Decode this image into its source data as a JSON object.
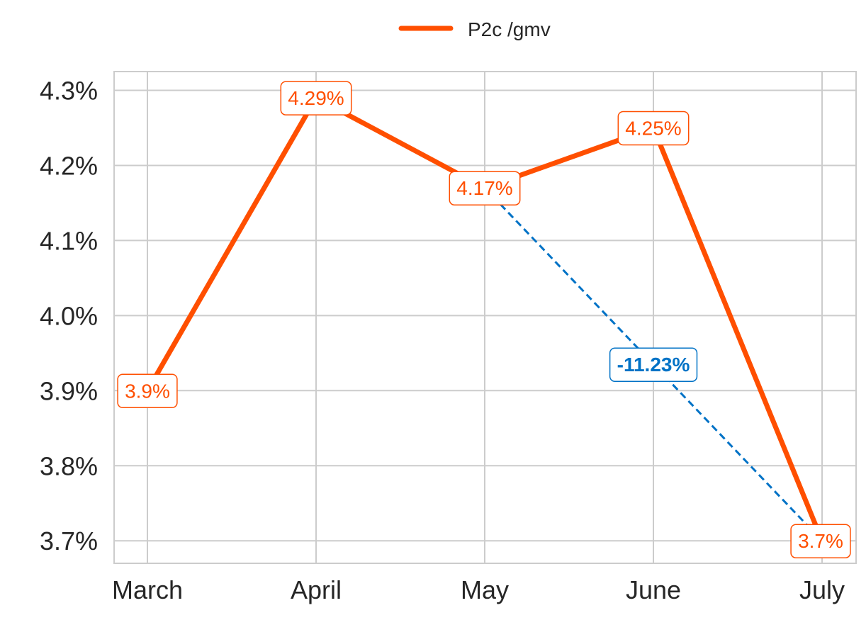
{
  "chart_data": {
    "type": "line",
    "categories": [
      "March",
      "April",
      "May",
      "June",
      "July"
    ],
    "series": [
      {
        "name": "P2c /gmv",
        "values": [
          3.9,
          4.29,
          4.17,
          4.25,
          3.7
        ],
        "color": "#FF4F00"
      }
    ],
    "data_labels": [
      "3.9%",
      "4.29%",
      "4.17%",
      "4.25%",
      "3.7%"
    ],
    "y_ticks": [
      3.7,
      3.8,
      3.9,
      4.0,
      4.1,
      4.2,
      4.3
    ],
    "y_tick_labels": [
      "3.7%",
      "3.8%",
      "3.9%",
      "4.0%",
      "4.1%",
      "4.2%",
      "4.3%"
    ],
    "ylim": [
      3.67,
      4.325
    ],
    "title": "",
    "xlabel": "",
    "ylabel": "",
    "grid": true,
    "legend": {
      "position": "top-center",
      "label": "P2c /gmv"
    },
    "annotation": {
      "label": "-11.23%",
      "from_category": "May",
      "to_category": "July",
      "color": "#0072C6",
      "style": "dashed"
    }
  }
}
